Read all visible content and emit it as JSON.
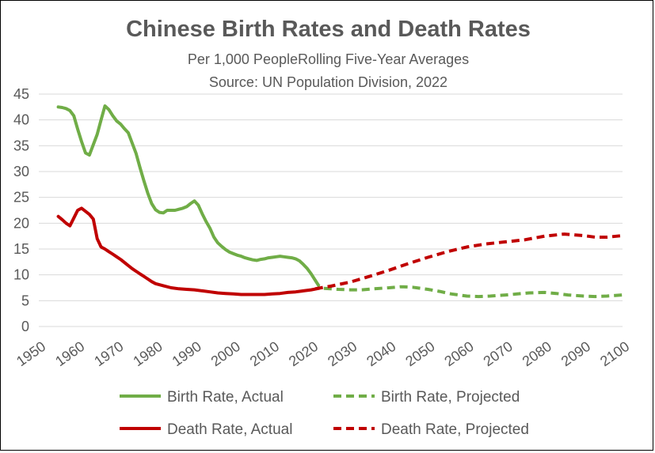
{
  "chart_data": {
    "type": "line",
    "title": "Chinese Birth Rates and Death Rates",
    "subtitle_line1": "Per 1,000 PeopleRolling Five-Year Averages",
    "subtitle_line2": "Source:  UN Population Division, 2022",
    "xlabel": "",
    "ylabel": "",
    "xlim": [
      1950,
      2100
    ],
    "ylim": [
      0,
      45
    ],
    "x_ticks": [
      "1950",
      "1960",
      "1970",
      "1980",
      "1990",
      "2000",
      "2010",
      "2020",
      "2030",
      "2040",
      "2050",
      "2060",
      "2070",
      "2080",
      "2090",
      "2100"
    ],
    "y_ticks": [
      "0",
      "5",
      "10",
      "15",
      "20",
      "25",
      "30",
      "35",
      "40",
      "45"
    ],
    "grid": "horizontal",
    "legend_position": "bottom",
    "series": [
      {
        "name": "Birth Rate, Actual",
        "color": "#70AD47",
        "style": "solid",
        "x": [
          1955,
          1956,
          1957,
          1958,
          1959,
          1960,
          1961,
          1962,
          1963,
          1964,
          1965,
          1966,
          1967,
          1968,
          1969,
          1970,
          1971,
          1972,
          1973,
          1974,
          1975,
          1976,
          1977,
          1978,
          1979,
          1980,
          1981,
          1982,
          1983,
          1984,
          1985,
          1986,
          1987,
          1988,
          1989,
          1990,
          1991,
          1992,
          1993,
          1994,
          1995,
          1996,
          1997,
          1998,
          1999,
          2000,
          2001,
          2002,
          2003,
          2004,
          2005,
          2006,
          2007,
          2008,
          2009,
          2010,
          2011,
          2012,
          2013,
          2014,
          2015,
          2016,
          2017,
          2018,
          2019,
          2020,
          2021
        ],
        "values": [
          42.5,
          42.4,
          42.2,
          41.8,
          40.8,
          38.2,
          35.8,
          33.6,
          33.2,
          35.2,
          37.2,
          40.0,
          42.7,
          42.0,
          40.8,
          39.8,
          39.2,
          38.3,
          37.5,
          35.5,
          33.5,
          30.8,
          28.2,
          25.8,
          23.8,
          22.6,
          22.1,
          22.0,
          22.5,
          22.5,
          22.5,
          22.7,
          22.9,
          23.2,
          23.8,
          24.3,
          23.5,
          21.8,
          20.3,
          19.0,
          17.3,
          16.2,
          15.5,
          14.9,
          14.4,
          14.1,
          13.8,
          13.6,
          13.3,
          13.1,
          12.9,
          12.8,
          13.0,
          13.1,
          13.3,
          13.4,
          13.5,
          13.6,
          13.5,
          13.4,
          13.3,
          13.1,
          12.7,
          12.0,
          11.2,
          10.2,
          9.0
        ]
      },
      {
        "name": "Birth Rate, Projected",
        "color": "#70AD47",
        "style": "dashed",
        "x": [
          2021,
          2022,
          2023,
          2025,
          2027,
          2030,
          2033,
          2036,
          2040,
          2043,
          2046,
          2050,
          2053,
          2056,
          2060,
          2063,
          2066,
          2070,
          2073,
          2076,
          2080,
          2083,
          2086,
          2090,
          2093,
          2096,
          2100
        ],
        "values": [
          9.0,
          7.8,
          7.4,
          7.3,
          7.2,
          7.1,
          7.1,
          7.3,
          7.5,
          7.7,
          7.6,
          7.2,
          6.8,
          6.3,
          5.9,
          5.8,
          5.9,
          6.1,
          6.3,
          6.5,
          6.6,
          6.4,
          6.1,
          5.9,
          5.8,
          5.9,
          6.1
        ]
      },
      {
        "name": "Death Rate, Actual",
        "color": "#C00000",
        "style": "solid",
        "x": [
          1955,
          1956,
          1957,
          1958,
          1959,
          1960,
          1961,
          1962,
          1963,
          1964,
          1965,
          1966,
          1967,
          1968,
          1969,
          1970,
          1971,
          1972,
          1973,
          1974,
          1975,
          1976,
          1977,
          1978,
          1979,
          1980,
          1982,
          1984,
          1986,
          1988,
          1990,
          1992,
          1994,
          1996,
          1998,
          2000,
          2002,
          2004,
          2006,
          2008,
          2010,
          2012,
          2014,
          2016,
          2018,
          2020,
          2022
        ],
        "values": [
          21.3,
          20.7,
          20.0,
          19.5,
          21.0,
          22.5,
          22.9,
          22.3,
          21.7,
          20.8,
          17.0,
          15.4,
          15.0,
          14.5,
          14.0,
          13.5,
          13.0,
          12.4,
          11.8,
          11.2,
          10.7,
          10.2,
          9.7,
          9.2,
          8.7,
          8.3,
          7.9,
          7.5,
          7.3,
          7.2,
          7.1,
          6.9,
          6.7,
          6.5,
          6.4,
          6.3,
          6.2,
          6.2,
          6.2,
          6.2,
          6.3,
          6.4,
          6.6,
          6.7,
          6.9,
          7.1,
          7.4
        ]
      },
      {
        "name": "Death Rate, Projected",
        "color": "#C00000",
        "style": "dashed",
        "x": [
          2021,
          2025,
          2030,
          2035,
          2040,
          2045,
          2050,
          2055,
          2060,
          2065,
          2070,
          2075,
          2080,
          2085,
          2090,
          2093,
          2096,
          2100
        ],
        "values": [
          7.3,
          7.8,
          8.6,
          9.7,
          10.9,
          12.2,
          13.4,
          14.5,
          15.4,
          16.0,
          16.4,
          16.8,
          17.5,
          17.9,
          17.6,
          17.3,
          17.3,
          17.6
        ]
      }
    ]
  }
}
